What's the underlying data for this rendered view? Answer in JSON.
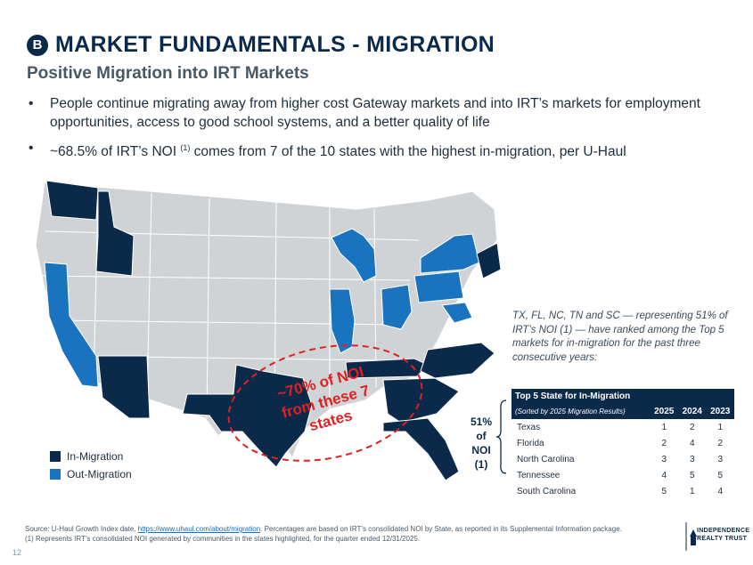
{
  "header": {
    "badge": "B",
    "title": "MARKET FUNDAMENTALS - MIGRATION",
    "subtitle": "Positive Migration into IRT Markets"
  },
  "bullets": {
    "b1": "People continue migrating away from higher cost Gateway markets and into IRT’s markets for employment opportunities, access to good school systems, and a better quality of life",
    "b2_a": "~68.5% of IRT’s NOI",
    "b2_sup": "(1)",
    "b2_b": "comes from 7 of the 10 states with the highest in-migration, per U-Haul"
  },
  "map": {
    "overlay_line1": "~70% of NOI",
    "overlay_line2": "from these 7",
    "overlay_line3": "states"
  },
  "legend": {
    "in_label": "In-Migration",
    "out_label": "Out-Migration"
  },
  "colors": {
    "in_migration": "#0b2a4a",
    "out_migration": "#1a73be",
    "neutral": "#d0d3d6",
    "accent_red": "#e02020"
  },
  "callout": {
    "text": "TX, FL, NC, TN and SC — representing 51% of IRT’s NOI (1) — have ranked among the Top 5 markets for in-migration for the past three consecutive years:"
  },
  "table": {
    "title": "Top 5 State for In-Migration",
    "subtitle": "(Sorted by 2025 Migration Results)",
    "years": [
      "2025",
      "2024",
      "2023"
    ],
    "rows": [
      {
        "state": "Texas",
        "y2025": "1",
        "y2024": "2",
        "y2023": "1"
      },
      {
        "state": "Florida",
        "y2025": "2",
        "y2024": "4",
        "y2023": "2"
      },
      {
        "state": "North Carolina",
        "y2025": "3",
        "y2024": "3",
        "y2023": "3"
      },
      {
        "state": "Tennessee",
        "y2025": "4",
        "y2024": "5",
        "y2023": "5"
      },
      {
        "state": "South Carolina",
        "y2025": "5",
        "y2024": "1",
        "y2023": "4"
      }
    ]
  },
  "share": {
    "line1": "51%",
    "line2": "of",
    "line3": "NOI (1)"
  },
  "footer": {
    "source_a": "Source: U-Haul Growth Index date,",
    "source_link": "https://www.uhaul.com/about/migration",
    "source_b": ". Percentages are based on IRT’s consolidated NOI by State, as reported in its Supplemental Information package.",
    "note": "(1)  Represents IRT’s consolidated NOI generated by communities in the states highlighted, for the quarter ended 12/31/2025.",
    "page": "12"
  },
  "logo": {
    "line1": "INDEPENDENCE",
    "line2": "REALTY TRUST"
  }
}
